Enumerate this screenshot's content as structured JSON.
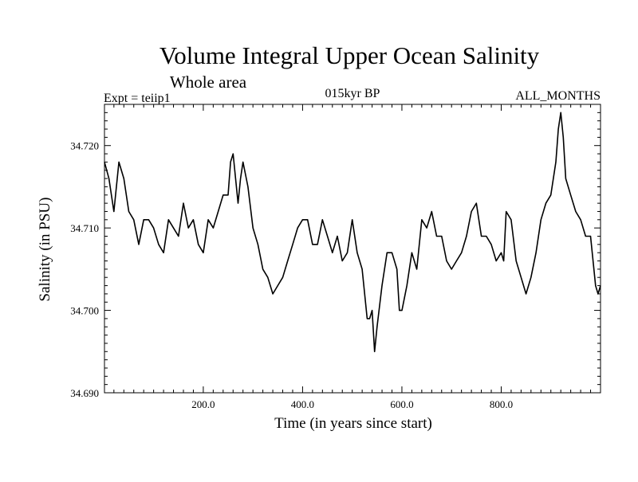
{
  "chart_data": {
    "type": "line",
    "title": "Volume Integral Upper Ocean Salinity",
    "subtitle": "Whole area",
    "header_left": "Expt = teiip1",
    "header_center": "015kyr BP",
    "header_right": "ALL_MONTHS",
    "xlabel": "Time (in years since start)",
    "ylabel": "Salinity (in PSU)",
    "xlim": [
      1,
      1000
    ],
    "ylim": [
      34.69,
      34.725
    ],
    "x_tick_labels": [
      {
        "value": 200,
        "label": "200.0"
      },
      {
        "value": 400,
        "label": "400.0"
      },
      {
        "value": 600,
        "label": "600.0"
      },
      {
        "value": 800,
        "label": "800.0"
      }
    ],
    "y_tick_labels": [
      {
        "value": 34.69,
        "label": "34.690"
      },
      {
        "value": 34.7,
        "label": "34.700"
      },
      {
        "value": 34.71,
        "label": "34.710"
      },
      {
        "value": 34.72,
        "label": "34.720"
      }
    ],
    "grid": false,
    "line_color": "#000000",
    "series": [
      {
        "x": [
          1,
          10,
          20,
          30,
          40,
          50,
          60,
          70,
          80,
          90,
          100,
          110,
          120,
          130,
          140,
          150,
          160,
          170,
          180,
          190,
          200,
          210,
          220,
          230,
          240,
          250,
          255,
          260,
          265,
          270,
          275,
          280,
          290,
          300,
          310,
          320,
          330,
          340,
          350,
          360,
          370,
          380,
          390,
          400,
          410,
          420,
          430,
          440,
          450,
          460,
          470,
          480,
          490,
          500,
          510,
          520,
          530,
          535,
          540,
          545,
          550,
          560,
          570,
          580,
          590,
          595,
          600,
          610,
          620,
          630,
          640,
          650,
          660,
          670,
          680,
          690,
          700,
          710,
          720,
          730,
          740,
          750,
          760,
          770,
          780,
          790,
          800,
          805,
          810,
          820,
          830,
          840,
          850,
          860,
          870,
          880,
          890,
          900,
          910,
          915,
          920,
          925,
          930,
          940,
          950,
          960,
          970,
          980,
          990,
          995,
          1000
        ],
        "y": [
          34.718,
          34.716,
          34.712,
          34.718,
          34.716,
          34.712,
          34.711,
          34.708,
          34.711,
          34.711,
          34.71,
          34.708,
          34.707,
          34.711,
          34.71,
          34.709,
          34.713,
          34.71,
          34.711,
          34.708,
          34.707,
          34.711,
          34.71,
          34.712,
          34.714,
          34.714,
          34.718,
          34.719,
          34.716,
          34.713,
          34.716,
          34.718,
          34.715,
          34.71,
          34.708,
          34.705,
          34.704,
          34.702,
          34.703,
          34.704,
          34.706,
          34.708,
          34.71,
          34.711,
          34.711,
          34.708,
          34.708,
          34.711,
          34.709,
          34.707,
          34.709,
          34.706,
          34.707,
          34.711,
          34.707,
          34.705,
          34.699,
          34.699,
          34.7,
          34.695,
          34.698,
          34.703,
          34.707,
          34.707,
          34.705,
          34.7,
          34.7,
          34.703,
          34.707,
          34.705,
          34.711,
          34.71,
          34.712,
          34.709,
          34.709,
          34.706,
          34.705,
          34.706,
          34.707,
          34.709,
          34.712,
          34.713,
          34.709,
          34.709,
          34.708,
          34.706,
          34.707,
          34.706,
          34.712,
          34.711,
          34.706,
          34.704,
          34.702,
          34.704,
          34.707,
          34.711,
          34.713,
          34.714,
          34.718,
          34.722,
          34.724,
          34.721,
          34.716,
          34.714,
          34.712,
          34.711,
          34.709,
          34.709,
          34.703,
          34.702,
          34.703
        ]
      }
    ]
  }
}
